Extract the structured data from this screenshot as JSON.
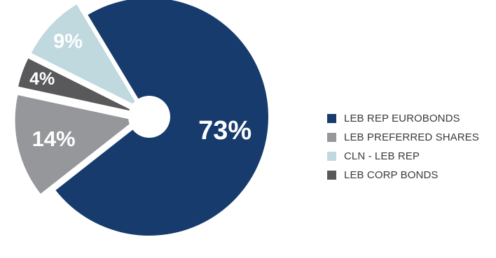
{
  "chart_data": {
    "type": "pie",
    "style": "exploded pie with hollow centre",
    "legend_position": "right",
    "slices": [
      {
        "label": "LEB REP EUROBONDS",
        "value": 73,
        "value_label": "73%",
        "color": "#173b6c"
      },
      {
        "label": "LEB PREFERRED SHARES",
        "value": 14,
        "value_label": "14%",
        "color": "#96979a"
      },
      {
        "label": "LEB CORP BONDS",
        "value": 4,
        "value_label": "4%",
        "color": "#59595b"
      },
      {
        "label": "CLN - LEB REP",
        "value": 9,
        "value_label": "9%",
        "color": "#bfd9df"
      }
    ],
    "legend_order": [
      0,
      1,
      3,
      2
    ]
  }
}
